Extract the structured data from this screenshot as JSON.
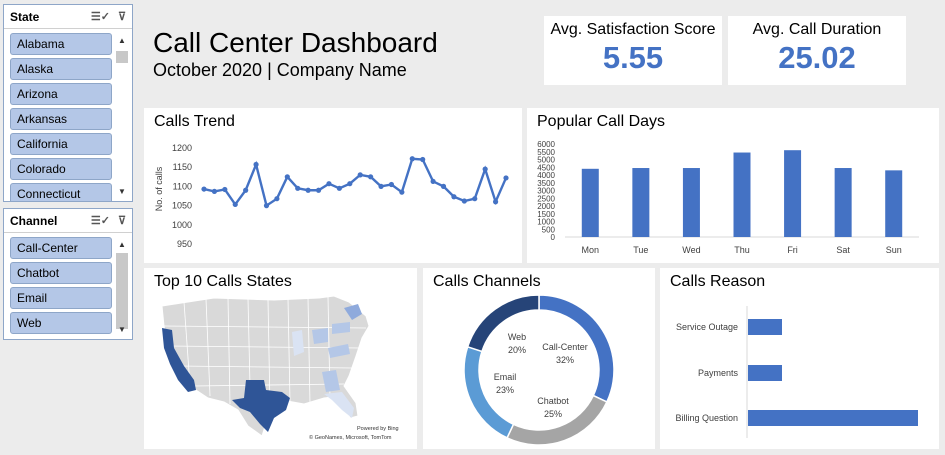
{
  "header": {
    "title": "Call Center Dashboard",
    "subtitle": "October 2020 | Company Name"
  },
  "state_slicer": {
    "title": "State",
    "items": [
      "Alabama",
      "Alaska",
      "Arizona",
      "Arkansas",
      "California",
      "Colorado",
      "Connecticut"
    ]
  },
  "channel_slicer": {
    "title": "Channel",
    "items": [
      "Call-Center",
      "Chatbot",
      "Email",
      "Web"
    ]
  },
  "kpis": {
    "satisfaction": {
      "label": "Avg. Satisfaction Score",
      "value": "5.55"
    },
    "duration": {
      "label": "Avg. Call Duration",
      "value": "25.02"
    }
  },
  "calls_trend": {
    "title": "Calls Trend",
    "chart_data": {
      "type": "line",
      "ylabel": "No. of calls",
      "ylim": [
        950,
        1200
      ],
      "yticks": [
        950,
        1000,
        1050,
        1100,
        1150,
        1200
      ],
      "values": [
        1093,
        1087,
        1092,
        1053,
        1090,
        1157,
        1050,
        1068,
        1125,
        1095,
        1090,
        1090,
        1107,
        1095,
        1107,
        1130,
        1125,
        1100,
        1105,
        1085,
        1172,
        1170,
        1113,
        1100,
        1073,
        1062,
        1068,
        1145,
        1060,
        1122
      ],
      "color": "#4472c4"
    }
  },
  "popular_days": {
    "title": "Popular Call Days",
    "chart_data": {
      "type": "bar",
      "categories": [
        "Mon",
        "Tue",
        "Wed",
        "Thu",
        "Fri",
        "Sat",
        "Sun"
      ],
      "values": [
        4400,
        4450,
        4450,
        5450,
        5600,
        4450,
        4300
      ],
      "ylim": [
        0,
        6000
      ],
      "yticks": [
        0,
        500,
        1000,
        1500,
        2000,
        2500,
        3000,
        3500,
        4000,
        4500,
        5000,
        5500,
        6000
      ],
      "color": "#4472c4"
    }
  },
  "top_states": {
    "title": "Top 10 Calls States",
    "attribution_bing": "Powered by Bing",
    "attribution_copy": "© GeoNames, Microsoft, TomTom"
  },
  "channels": {
    "title": "Calls Channels",
    "chart_data": {
      "type": "pie",
      "labels": [
        "Call-Center",
        "Chatbot",
        "Email",
        "Web"
      ],
      "values": [
        32,
        25,
        23,
        20
      ],
      "pct_labels": [
        "32%",
        "25%",
        "23%",
        "20%"
      ],
      "colors": [
        "#4472c4",
        "#a5a5a5",
        "#5b9bd5",
        "#264478"
      ]
    }
  },
  "reasons": {
    "title": "Calls Reason",
    "chart_data": {
      "type": "bar",
      "categories": [
        "Service Outage",
        "Payments",
        "Billing Question"
      ],
      "values": [
        1,
        1,
        5
      ],
      "color": "#4472c4"
    }
  }
}
